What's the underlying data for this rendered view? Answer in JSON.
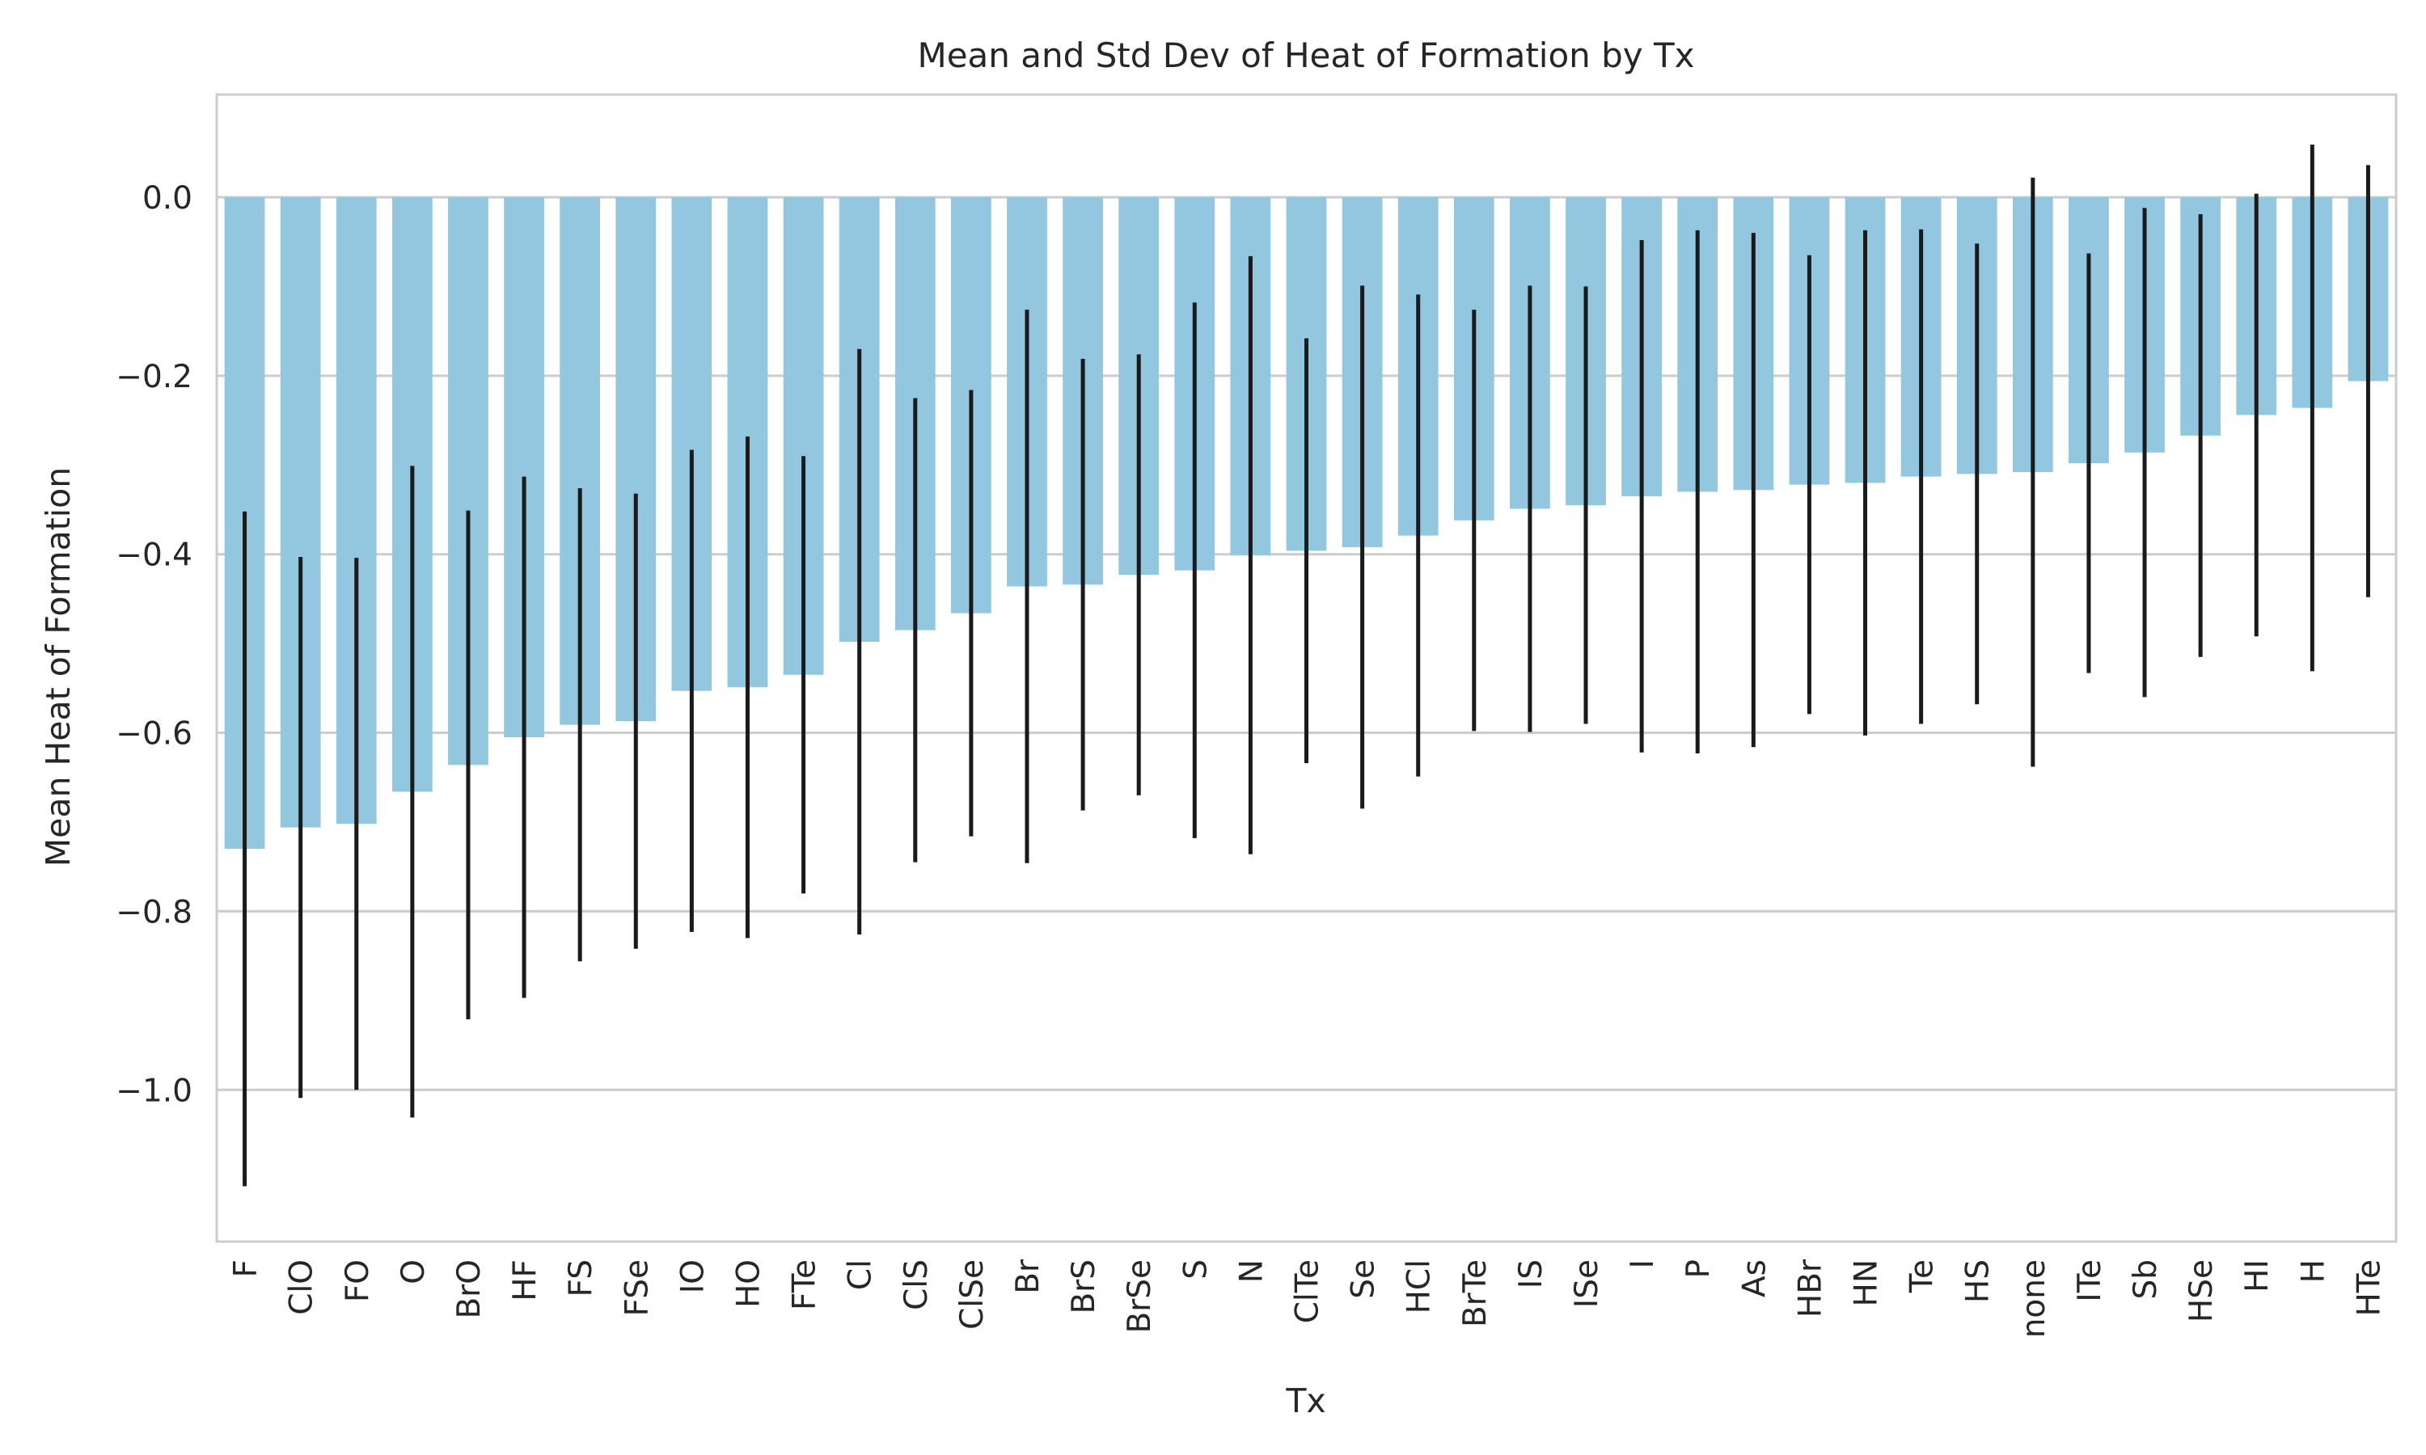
{
  "chart_data": {
    "type": "bar",
    "title": "Mean and Std Dev of Heat of Formation by Tx",
    "xlabel": "Tx",
    "ylabel": "Mean Heat of Formation",
    "ylim": [
      -1.17,
      0.115
    ],
    "yticks": [
      0.0,
      -0.2,
      -0.4,
      -0.6,
      -0.8,
      -1.0
    ],
    "ytick_labels": [
      "0.0",
      "−0.2",
      "−0.4",
      "−0.6",
      "−0.8",
      "−1.0"
    ],
    "grid": "horizontal",
    "bar_color": "#92c7df",
    "error_color": "#1a1a1a",
    "categories": [
      "F",
      "ClO",
      "FO",
      "O",
      "BrO",
      "HF",
      "FS",
      "FSe",
      "IO",
      "HO",
      "FTe",
      "Cl",
      "ClS",
      "ClSe",
      "Br",
      "BrS",
      "BrSe",
      "S",
      "N",
      "ClTe",
      "Se",
      "HCl",
      "BrTe",
      "IS",
      "ISe",
      "I",
      "P",
      "As",
      "HBr",
      "HN",
      "Te",
      "HS",
      "none",
      "ITe",
      "Sb",
      "HSe",
      "HI",
      "H",
      "HTe"
    ],
    "values": [
      -0.73,
      -0.706,
      -0.702,
      -0.666,
      -0.636,
      -0.605,
      -0.591,
      -0.587,
      -0.553,
      -0.549,
      -0.535,
      -0.498,
      -0.485,
      -0.466,
      -0.436,
      -0.434,
      -0.423,
      -0.418,
      -0.401,
      -0.396,
      -0.392,
      -0.379,
      -0.362,
      -0.349,
      -0.345,
      -0.335,
      -0.33,
      -0.328,
      -0.322,
      -0.32,
      -0.313,
      -0.31,
      -0.308,
      -0.298,
      -0.286,
      -0.267,
      -0.244,
      -0.236,
      -0.206
    ],
    "std": [
      0.378,
      0.303,
      0.298,
      0.365,
      0.285,
      0.292,
      0.265,
      0.255,
      0.27,
      0.281,
      0.245,
      0.328,
      0.26,
      0.25,
      0.31,
      0.253,
      0.247,
      0.3,
      0.335,
      0.238,
      0.293,
      0.27,
      0.236,
      0.25,
      0.245,
      0.287,
      0.293,
      0.288,
      0.257,
      0.283,
      0.277,
      0.258,
      0.33,
      0.235,
      0.274,
      0.248,
      0.248,
      0.295,
      0.242
    ]
  }
}
